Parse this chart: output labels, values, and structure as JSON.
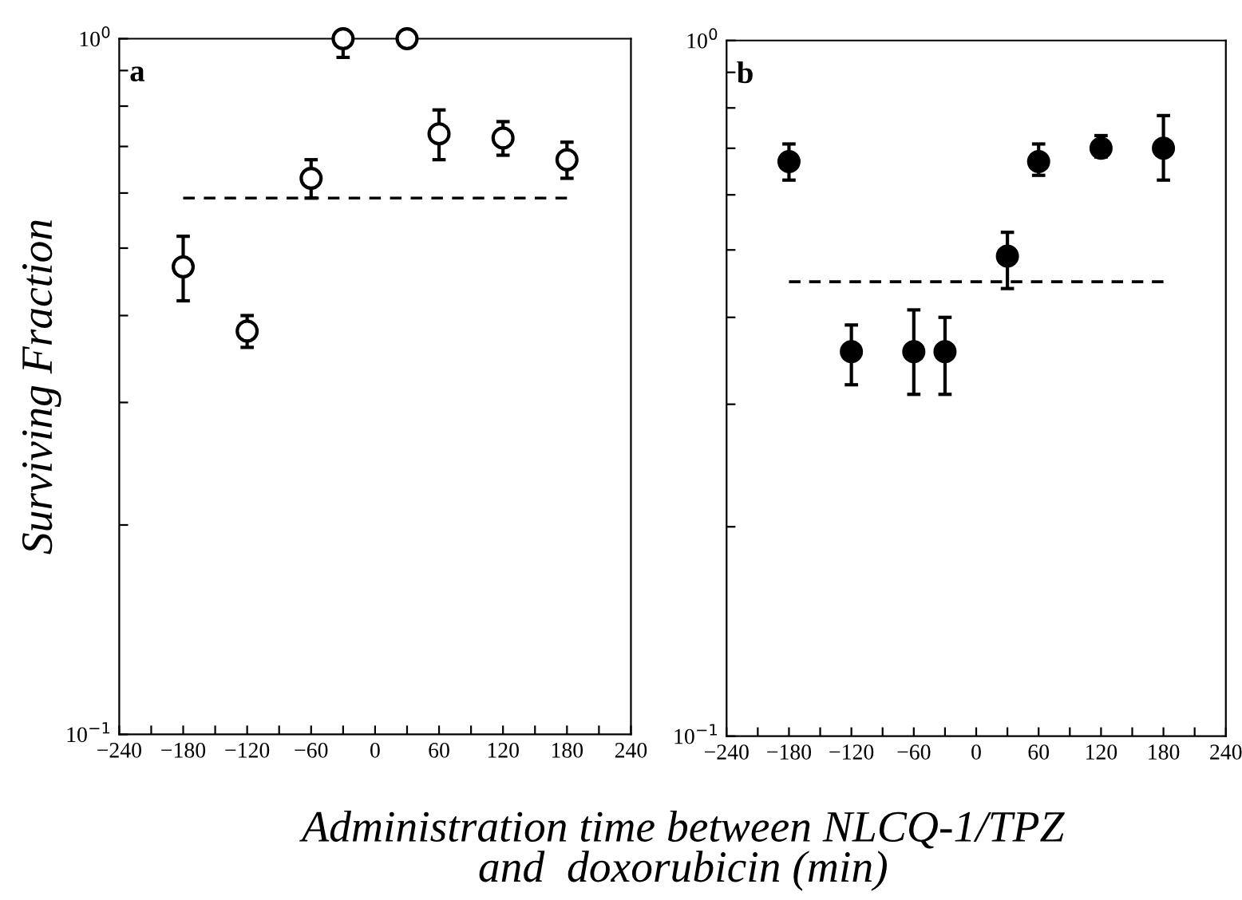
{
  "chart_data": [
    {
      "type": "scatter",
      "ylabel": "Surviving Fraction",
      "xlabel": "Administration time between NLCQ-1/TPZ\nand  doxorubicin (min)",
      "annotations": [
        "a"
      ],
      "log": "y",
      "grid": false,
      "legend": false,
      "marker": "circle",
      "xlim": [
        -240,
        240
      ],
      "xticks": [
        -240,
        {
          "value": -210,
          "label": null
        },
        -180,
        {
          "value": -150,
          "label": null
        },
        -120,
        {
          "value": -90,
          "label": null
        },
        -60,
        {
          "value": -30,
          "label": null
        },
        0,
        {
          "value": 30,
          "label": null
        },
        60,
        {
          "value": 90,
          "label": null
        },
        120,
        {
          "value": 150,
          "label": null
        },
        180,
        {
          "value": 210,
          "label": null
        },
        240
      ],
      "ylim": [
        0.1,
        1
      ],
      "yticks": [
        {
          "value": 0.1,
          "label": "10$^{−1}$"
        },
        {
          "value": 0.2,
          "label": null
        },
        {
          "value": 0.3,
          "label": null
        },
        {
          "value": 0.4,
          "label": null
        },
        {
          "value": 0.5,
          "label": null
        },
        {
          "value": 0.6,
          "label": null
        },
        {
          "value": 0.7,
          "label": null
        },
        {
          "value": 0.8,
          "label": null
        },
        {
          "value": 0.9,
          "label": null
        },
        {
          "value": 1,
          "label": "10$^{0}$"
        }
      ],
      "series": [
        {
          "color": "#ffffff",
          "x": [
            -180,
            -120,
            -60,
            -30,
            30,
            60,
            120,
            180
          ],
          "values": [
            0.47,
            0.38,
            0.63,
            1.0,
            1.0,
            0.73,
            0.72,
            0.67
          ],
          "errors": [
            [
              0.42,
              0.52
            ],
            [
              0.36,
              0.4
            ],
            [
              0.59,
              0.67
            ],
            [
              0.94,
              1.0
            ],
            null,
            [
              0.67,
              0.79
            ],
            [
              0.68,
              0.76
            ],
            [
              0.63,
              0.71
            ]
          ]
        },
        {
          "type": "line",
          "marker": "none",
          "color": "#000000",
          "line_style": "dashed",
          "x": [
            -180,
            180
          ],
          "values": [
            0.59,
            0.59
          ]
        }
      ]
    },
    {
      "type": "scatter",
      "annotations": [
        "b"
      ],
      "log": "y",
      "grid": false,
      "legend": false,
      "marker": "circle",
      "xlim": [
        -240,
        240
      ],
      "xticks": [
        -240,
        {
          "value": -210,
          "label": null
        },
        -180,
        {
          "value": -150,
          "label": null
        },
        -120,
        {
          "value": -90,
          "label": null
        },
        -60,
        {
          "value": -30,
          "label": null
        },
        0,
        {
          "value": 30,
          "label": null
        },
        60,
        {
          "value": 90,
          "label": null
        },
        120,
        {
          "value": 150,
          "label": null
        },
        180,
        {
          "value": 210,
          "label": null
        },
        240
      ],
      "ylim": [
        0.1,
        1
      ],
      "yticks": [
        {
          "value": 0.1,
          "label": "10$^{−1}$"
        },
        {
          "value": 0.2,
          "label": null
        },
        {
          "value": 0.3,
          "label": null
        },
        {
          "value": 0.4,
          "label": null
        },
        {
          "value": 0.5,
          "label": null
        },
        {
          "value": 0.6,
          "label": null
        },
        {
          "value": 0.7,
          "label": null
        },
        {
          "value": 0.8,
          "label": null
        },
        {
          "value": 0.9,
          "label": null
        },
        {
          "value": 1,
          "label": "10$^{0}$"
        }
      ],
      "series": [
        {
          "color": "#000000",
          "x": [
            -180,
            -120,
            -60,
            -30,
            30,
            60,
            120,
            180
          ],
          "values": [
            0.67,
            0.357,
            0.357,
            0.357,
            0.49,
            0.67,
            0.7,
            0.7
          ],
          "errors": [
            [
              0.63,
              0.71
            ],
            [
              0.32,
              0.39
            ],
            [
              0.31,
              0.41
            ],
            [
              0.31,
              0.4
            ],
            [
              0.44,
              0.53
            ],
            [
              0.64,
              0.71
            ],
            [
              0.68,
              0.73
            ],
            [
              0.63,
              0.78
            ]
          ]
        },
        {
          "type": "line",
          "marker": "none",
          "color": "#000000",
          "line_style": "dashed",
          "x": [
            -180,
            180
          ],
          "values": [
            0.45,
            0.45
          ]
        }
      ]
    }
  ]
}
